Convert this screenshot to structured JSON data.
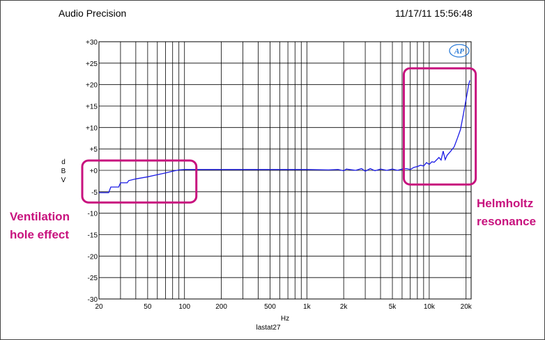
{
  "header": {
    "app_title": "Audio Precision",
    "timestamp": "11/17/11 15:56:48",
    "logo_text": "AP"
  },
  "chart_data": {
    "type": "line",
    "title": "",
    "xlabel": "Hz",
    "ylabel": [
      "d",
      "B",
      "V"
    ],
    "footer": "lastat27",
    "x_scale": "log",
    "xlim": [
      20,
      22000
    ],
    "ylim": [
      -30,
      30
    ],
    "grid": true,
    "x_ticks": [
      20,
      50,
      100,
      200,
      500,
      1000,
      2000,
      5000,
      10000,
      20000
    ],
    "x_tick_labels": [
      "20",
      "50",
      "100",
      "200",
      "500",
      "1k",
      "2k",
      "5k",
      "10k",
      "20k"
    ],
    "y_ticks": [
      30,
      25,
      20,
      15,
      10,
      5,
      0,
      -5,
      -10,
      -15,
      -20,
      -25,
      -30
    ],
    "y_tick_labels": [
      "+30",
      "+25",
      "+20",
      "+15",
      "+10",
      "+5",
      "+0",
      "-5",
      "-10",
      "-15",
      "-20",
      "-25",
      "-30"
    ],
    "series_color": "#1a1ae6",
    "series": [
      {
        "x": [
          20,
          24,
          25,
          29,
          30,
          34,
          35,
          40,
          50,
          60,
          70,
          80,
          90,
          100,
          120,
          150,
          200,
          300,
          400,
          500,
          700,
          1000,
          1500,
          1800,
          2000,
          2100,
          2500,
          2800,
          3000,
          3300,
          3600,
          4000,
          4500,
          5000,
          5500,
          6000,
          6500,
          7000,
          7500,
          8000,
          8500,
          9000,
          9500,
          10000,
          10500,
          11000,
          12000,
          12500,
          13000,
          13500,
          14000,
          15000,
          16000,
          17000,
          18000,
          19000,
          20000,
          21000,
          21500
        ],
        "y": [
          -5.2,
          -5.2,
          -3.9,
          -3.9,
          -2.9,
          -2.9,
          -2.4,
          -2.0,
          -1.5,
          -1.0,
          -0.6,
          -0.2,
          0.1,
          0.2,
          0.2,
          0.2,
          0.2,
          0.2,
          0.2,
          0.2,
          0.2,
          0.2,
          0.1,
          0.2,
          -0.1,
          0.3,
          0.0,
          0.4,
          -0.2,
          0.4,
          -0.1,
          0.3,
          0.0,
          0.3,
          0.0,
          0.3,
          0.4,
          0.2,
          0.7,
          0.9,
          1.2,
          1.0,
          1.8,
          1.4,
          2.0,
          1.9,
          3.0,
          2.4,
          4.5,
          2.5,
          3.5,
          4.5,
          5.5,
          7.5,
          9.5,
          13.0,
          16.5,
          20.0,
          21.0
        ]
      }
    ],
    "annotations": [
      {
        "lines": [
          "Ventilation",
          "hole effect"
        ],
        "box_x": [
          20,
          125
        ],
        "box_y": [
          -7.5,
          2.3
        ],
        "color": "#c8127e"
      },
      {
        "lines": [
          "Helmholtz",
          "resonance"
        ],
        "box_x": [
          6200,
          24000
        ],
        "box_y": [
          -3.3,
          23.8
        ],
        "color": "#c8127e"
      }
    ]
  }
}
